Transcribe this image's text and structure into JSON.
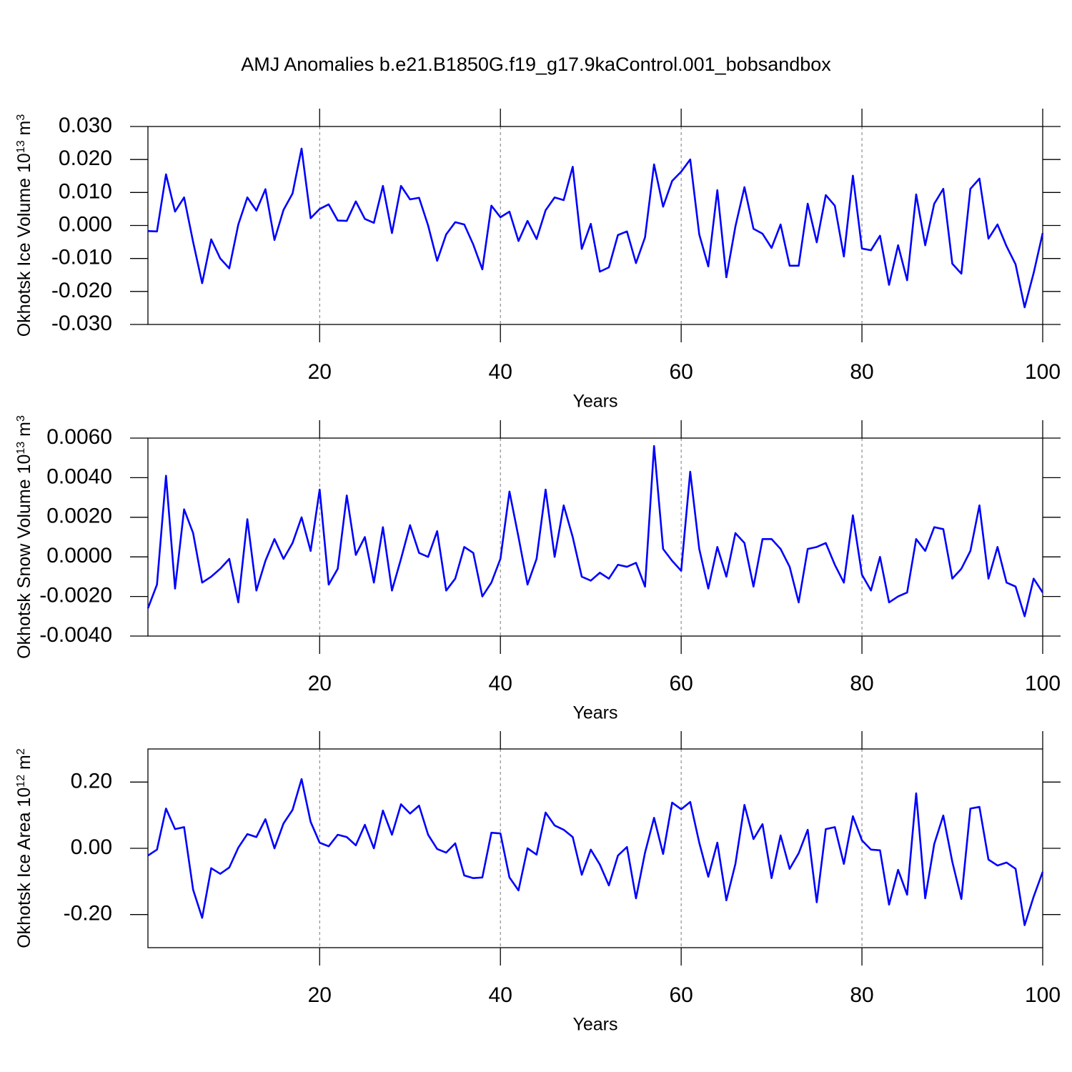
{
  "title": "AMJ Anomalies b.e21.B1850G.f19_g17.9kaControl.001_bobsandbox",
  "chart_data": [
    {
      "type": "line",
      "ylabel": [
        "Okhotsk Ice Volume 10",
        "13",
        " m",
        "3"
      ],
      "xlabel": "Years",
      "xlim": [
        1,
        100
      ],
      "xticks": [
        20,
        40,
        60,
        80,
        100
      ],
      "ylim": [
        -0.03,
        0.03
      ],
      "yticks": [
        {
          "value": -0.03,
          "label": "-0.030"
        },
        {
          "value": -0.02,
          "label": "-0.020"
        },
        {
          "value": -0.01,
          "label": "-0.010"
        },
        {
          "value": 0,
          "label": "0.000"
        },
        {
          "value": 0.01,
          "label": "0.010"
        },
        {
          "value": 0.02,
          "label": "0.020"
        },
        {
          "value": 0.03,
          "label": "0.030"
        }
      ],
      "grid": true,
      "x": [
        1,
        2,
        3,
        4,
        5,
        6,
        7,
        8,
        9,
        10,
        11,
        12,
        13,
        14,
        15,
        16,
        17,
        18,
        19,
        20,
        21,
        22,
        23,
        24,
        25,
        26,
        27,
        28,
        29,
        30,
        31,
        32,
        33,
        34,
        35,
        36,
        37,
        38,
        39,
        40,
        41,
        42,
        43,
        44,
        45,
        46,
        47,
        48,
        49,
        50,
        51,
        52,
        53,
        54,
        55,
        56,
        57,
        58,
        59,
        60,
        61,
        62,
        63,
        64,
        65,
        66,
        67,
        68,
        69,
        70,
        71,
        72,
        73,
        74,
        75,
        76,
        77,
        78,
        79,
        80,
        81,
        82,
        83,
        84,
        85,
        86,
        87,
        88,
        89,
        90,
        91,
        92,
        93,
        94,
        95,
        96,
        97,
        98,
        99,
        100
      ],
      "series": [
        {
          "color": "#0000ff",
          "values": [
            -0.0017,
            -0.0018,
            0.0155,
            0.0042,
            0.0085,
            -0.005,
            -0.0175,
            -0.0042,
            -0.01,
            -0.013,
            0.0003,
            0.0085,
            0.0045,
            0.011,
            -0.0044,
            0.0047,
            0.0097,
            0.0233,
            0.0022,
            0.005,
            0.0064,
            0.0015,
            0.0014,
            0.0073,
            0.002,
            0.0008,
            0.012,
            -0.0023,
            0.012,
            0.0079,
            0.0084,
            0.0,
            -0.0107,
            -0.0027,
            0.001,
            0.0003,
            -0.0058,
            -0.0133,
            0.006,
            0.0025,
            0.0042,
            -0.0047,
            0.0014,
            -0.0041,
            0.0046,
            0.0085,
            0.0077,
            0.0178,
            -0.0071,
            0.0005,
            -0.014,
            -0.0127,
            -0.0029,
            -0.0018,
            -0.0114,
            -0.0036,
            0.0185,
            0.0057,
            0.0135,
            0.0163,
            0.02,
            -0.0027,
            -0.0124,
            0.0107,
            -0.0157,
            -0.0003,
            0.0116,
            -0.001,
            -0.0025,
            -0.0068,
            0.0003,
            -0.0122,
            -0.0122,
            0.0066,
            -0.0051,
            0.0092,
            0.006,
            -0.0094,
            0.0151,
            -0.007,
            -0.0075,
            -0.0031,
            -0.018,
            -0.006,
            -0.0166,
            0.0094,
            -0.006,
            0.0066,
            0.0111,
            -0.0116,
            -0.0146,
            0.0111,
            0.0142,
            -0.004,
            0.0003,
            -0.0063,
            -0.0118,
            -0.0248,
            -0.0144,
            -0.0023
          ]
        }
      ]
    },
    {
      "type": "line",
      "ylabel": [
        "Okhotsk Snow Volume 10",
        "13",
        " m",
        "3"
      ],
      "xlabel": "Years",
      "xlim": [
        1,
        100
      ],
      "xticks": [
        20,
        40,
        60,
        80,
        100
      ],
      "ylim": [
        -0.004,
        0.006
      ],
      "yticks": [
        {
          "value": -0.004,
          "label": "-0.0040"
        },
        {
          "value": -0.002,
          "label": "-0.0020"
        },
        {
          "value": 0,
          "label": "0.0000"
        },
        {
          "value": 0.002,
          "label": "0.0020"
        },
        {
          "value": 0.004,
          "label": "0.0040"
        },
        {
          "value": 0.006,
          "label": "0.0060"
        }
      ],
      "grid": true,
      "x": [
        1,
        2,
        3,
        4,
        5,
        6,
        7,
        8,
        9,
        10,
        11,
        12,
        13,
        14,
        15,
        16,
        17,
        18,
        19,
        20,
        21,
        22,
        23,
        24,
        25,
        26,
        27,
        28,
        29,
        30,
        31,
        32,
        33,
        34,
        35,
        36,
        37,
        38,
        39,
        40,
        41,
        42,
        43,
        44,
        45,
        46,
        47,
        48,
        49,
        50,
        51,
        52,
        53,
        54,
        55,
        56,
        57,
        58,
        59,
        60,
        61,
        62,
        63,
        64,
        65,
        66,
        67,
        68,
        69,
        70,
        71,
        72,
        73,
        74,
        75,
        76,
        77,
        78,
        79,
        80,
        81,
        82,
        83,
        84,
        85,
        86,
        87,
        88,
        89,
        90,
        91,
        92,
        93,
        94,
        95,
        96,
        97,
        98,
        99,
        100
      ],
      "series": [
        {
          "color": "#0000ff",
          "values": [
            -0.0026,
            -0.0014,
            0.0041,
            -0.0016,
            0.0024,
            0.0012,
            -0.0013,
            -0.001,
            -0.0006,
            -0.0001,
            -0.0023,
            0.0019,
            -0.0017,
            -0.0002,
            0.0009,
            -0.0001,
            0.0007,
            0.002,
            0.0003,
            0.0034,
            -0.0014,
            -0.0006,
            0.0031,
            0.0001,
            0.001,
            -0.0013,
            0.0015,
            -0.0017,
            -0.0001,
            0.0016,
            0.0002,
            0.0,
            0.0013,
            -0.0017,
            -0.0011,
            0.0005,
            0.0002,
            -0.002,
            -0.0013,
            -0.0001,
            0.0033,
            0.001,
            -0.0014,
            -0.0001,
            0.0034,
            0.0,
            0.0026,
            0.001,
            -0.001,
            -0.0012,
            -0.0008,
            -0.0011,
            -0.0004,
            -0.0005,
            -0.0003,
            -0.0015,
            0.0056,
            0.0004,
            -0.0002,
            -0.0007,
            0.0043,
            0.0004,
            -0.0016,
            0.0005,
            -0.001,
            0.0012,
            0.0007,
            -0.0015,
            0.0009,
            0.0009,
            0.0004,
            -0.0005,
            -0.0023,
            0.0004,
            0.0005,
            0.0007,
            -0.0004,
            -0.0013,
            0.0021,
            -0.0009,
            -0.0017,
            0.0,
            -0.0023,
            -0.002,
            -0.0018,
            0.0009,
            0.0003,
            0.0015,
            0.0014,
            -0.0011,
            -0.0006,
            0.0003,
            0.0026,
            -0.0011,
            0.0005,
            -0.0013,
            -0.0015,
            -0.003,
            -0.0011,
            -0.0018
          ]
        }
      ]
    },
    {
      "type": "line",
      "ylabel": [
        "Okhotsk Ice Area 10",
        "12",
        " m",
        "2"
      ],
      "xlabel": "Years",
      "xlim": [
        1,
        100
      ],
      "xticks": [
        20,
        40,
        60,
        80,
        100
      ],
      "ylim": [
        -0.3,
        0.3
      ],
      "yticks": [
        {
          "value": -0.2,
          "label": "-0.20"
        },
        {
          "value": 0,
          "label": "0.00"
        },
        {
          "value": 0.2,
          "label": "0.20"
        }
      ],
      "grid": true,
      "x": [
        1,
        2,
        3,
        4,
        5,
        6,
        7,
        8,
        9,
        10,
        11,
        12,
        13,
        14,
        15,
        16,
        17,
        18,
        19,
        20,
        21,
        22,
        23,
        24,
        25,
        26,
        27,
        28,
        29,
        30,
        31,
        32,
        33,
        34,
        35,
        36,
        37,
        38,
        39,
        40,
        41,
        42,
        43,
        44,
        45,
        46,
        47,
        48,
        49,
        50,
        51,
        52,
        53,
        54,
        55,
        56,
        57,
        58,
        59,
        60,
        61,
        62,
        63,
        64,
        65,
        66,
        67,
        68,
        69,
        70,
        71,
        72,
        73,
        74,
        75,
        76,
        77,
        78,
        79,
        80,
        81,
        82,
        83,
        84,
        85,
        86,
        87,
        88,
        89,
        90,
        91,
        92,
        93,
        94,
        95,
        96,
        97,
        98,
        99,
        100
      ],
      "series": [
        {
          "color": "#0000ff",
          "values": [
            -0.022,
            -0.004,
            0.12,
            0.058,
            0.064,
            -0.125,
            -0.21,
            -0.06,
            -0.077,
            -0.058,
            0.002,
            0.043,
            0.034,
            0.088,
            0.0,
            0.075,
            0.116,
            0.209,
            0.08,
            0.017,
            0.006,
            0.041,
            0.034,
            0.009,
            0.071,
            0.0,
            0.114,
            0.041,
            0.133,
            0.105,
            0.129,
            0.041,
            -0.002,
            -0.013,
            0.015,
            -0.082,
            -0.09,
            -0.088,
            0.047,
            0.045,
            -0.088,
            -0.127,
            0.0,
            -0.019,
            0.108,
            0.069,
            0.056,
            0.034,
            -0.08,
            -0.004,
            -0.049,
            -0.112,
            -0.022,
            0.004,
            -0.151,
            -0.013,
            0.092,
            -0.017,
            0.138,
            0.118,
            0.14,
            0.017,
            -0.086,
            0.017,
            -0.157,
            -0.047,
            0.131,
            0.028,
            0.073,
            -0.09,
            0.039,
            -0.062,
            -0.015,
            0.056,
            -0.163,
            0.058,
            0.064,
            -0.047,
            0.097,
            0.024,
            -0.004,
            -0.006,
            -0.17,
            -0.065,
            -0.14,
            0.166,
            -0.151,
            0.013,
            0.099,
            -0.041,
            -0.153,
            0.12,
            0.125,
            -0.034,
            -0.052,
            -0.043,
            -0.062,
            -0.232,
            -0.146,
            -0.071
          ]
        }
      ]
    }
  ]
}
